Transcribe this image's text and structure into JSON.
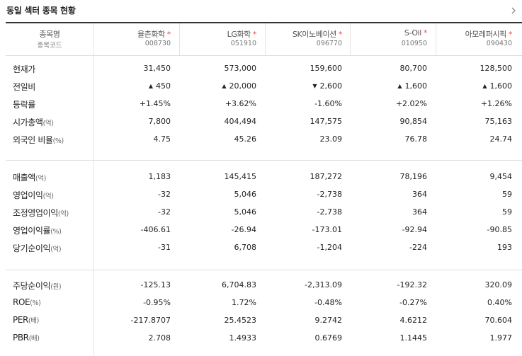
{
  "page": {
    "title": "동일 섹터 종목 현황"
  },
  "header": {
    "label_name": "종목명",
    "label_code": "종목코드",
    "companies": [
      {
        "name": "율촌화학",
        "code": "008730"
      },
      {
        "name": "LG화학",
        "code": "051910"
      },
      {
        "name": "SK이노베이션",
        "code": "096770"
      },
      {
        "name": "S-Oil",
        "code": "010950"
      },
      {
        "name": "아모레퍼시픽",
        "code": "090430"
      }
    ],
    "star": "*"
  },
  "rows": [
    {
      "label": "현재가",
      "unit": "",
      "values": [
        "31,450",
        "573,000",
        "159,600",
        "80,700",
        "128,500"
      ]
    },
    {
      "label": "전일비",
      "unit": "",
      "values": [
        "450",
        "20,000",
        "2,600",
        "1,600",
        "1,600"
      ],
      "direction": [
        "up",
        "up",
        "down",
        "up",
        "up"
      ]
    },
    {
      "label": "등락률",
      "unit": "",
      "values": [
        "+1.45%",
        "+3.62%",
        "-1.60%",
        "+2.02%",
        "+1.26%"
      ],
      "direction": [
        "up",
        "up",
        "down",
        "up",
        "up"
      ]
    },
    {
      "label": "시가총액",
      "unit": "(억)",
      "values": [
        "7,800",
        "404,494",
        "147,575",
        "90,854",
        "75,163"
      ]
    },
    {
      "label": "외국인 비율",
      "unit": "(%)",
      "values": [
        "4.75",
        "45.26",
        "23.09",
        "76.78",
        "24.74"
      ]
    },
    {
      "label": "매출액",
      "unit": "(억)",
      "values": [
        "1,183",
        "145,415",
        "187,272",
        "78,196",
        "9,454"
      ]
    },
    {
      "label": "영업이익",
      "unit": "(억)",
      "values": [
        "-32",
        "5,046",
        "-2,738",
        "364",
        "59"
      ]
    },
    {
      "label": "조정영업이익",
      "unit": "(억)",
      "values": [
        "-32",
        "5,046",
        "-2,738",
        "364",
        "59"
      ]
    },
    {
      "label": "영업이익률",
      "unit": "(%)",
      "values": [
        "-406.61",
        "-26.94",
        "-173.01",
        "-92.94",
        "-90.85"
      ]
    },
    {
      "label": "당기순이익",
      "unit": "(억)",
      "values": [
        "-31",
        "6,708",
        "-1,204",
        "-224",
        "193"
      ]
    },
    {
      "label": "주당순이익",
      "unit": "(원)",
      "values": [
        "-125.13",
        "6,704.83",
        "-2,313.09",
        "-192.32",
        "320.09"
      ]
    },
    {
      "label": "ROE",
      "unit": "(%)",
      "values": [
        "-0.95%",
        "1.72%",
        "-0.48%",
        "-0.27%",
        "0.40%"
      ]
    },
    {
      "label": "PER",
      "unit": "(배)",
      "values": [
        "-217.8707",
        "25.4523",
        "9.2742",
        "4.6212",
        "70.604"
      ]
    },
    {
      "label": "PBR",
      "unit": "(배)",
      "values": [
        "2.708",
        "1.4933",
        "0.6769",
        "1.1445",
        "1.977"
      ]
    }
  ],
  "symbols": {
    "up": "▲",
    "down": "▼"
  },
  "colors": {
    "up": "#e12d2d",
    "down": "#2b62d0",
    "star": "#e64d4d"
  }
}
